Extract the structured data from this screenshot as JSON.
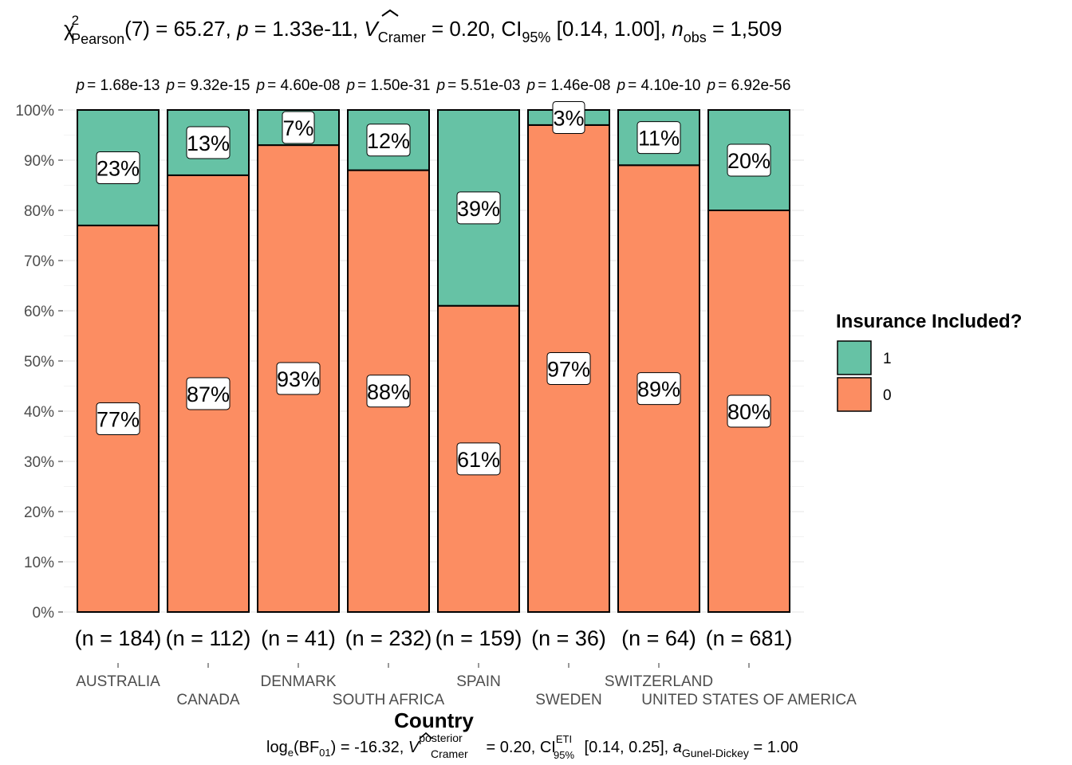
{
  "chart_data": {
    "type": "bar",
    "stacked": "percent",
    "title": {
      "chi": "χ",
      "chi_sup": "2",
      "chi_sub": "Pearson",
      "df": "(7) = 65.27, ",
      "p_sym": "p",
      "p_val": " = 1.33e-11, ",
      "v_sym": "V",
      "v_sub": "Cramer",
      "v_val": " = 0.20, CI",
      "ci_sub": "95%",
      "ci_val": " [0.14, 1.00], ",
      "n_sym": "n",
      "n_sub": "obs",
      "n_val": " = 1,509"
    },
    "subtitle": {
      "log": "log",
      "log_sub": "e",
      "bf": "(BF",
      "bf_sub": "01",
      "bf_val": ") = -16.32, ",
      "v_sym": "V",
      "v_sup": "posterior",
      "v_sub": "Cramer",
      "v_val": " = 0.20, CI",
      "ci_sup": "ETI",
      "ci_sub": "95%",
      "ci_val": " [0.14, 0.25], ",
      "a_sym": "a",
      "a_sub": "Gunel-Dickey",
      "a_val": " = 1.00"
    },
    "xlabel": "Country",
    "ylabel": "",
    "ylim": [
      0,
      100
    ],
    "y_ticks": [
      "0%",
      "10%",
      "20%",
      "30%",
      "40%",
      "50%",
      "60%",
      "70%",
      "80%",
      "90%",
      "100%"
    ],
    "grid": true,
    "categories": [
      "AUSTRALIA",
      "CANADA",
      "DENMARK",
      "SOUTH AFRICA",
      "SPAIN",
      "SWEDEN",
      "SWITZERLAND",
      "UNITED STATES OF AMERICA"
    ],
    "counts": [
      "(n = 184)",
      "(n = 112)",
      "(n = 41)",
      "(n = 232)",
      "(n = 159)",
      "(n = 36)",
      "(n = 64)",
      "(n = 681)"
    ],
    "p_labels": [
      "= 1.68e-13",
      "= 9.32e-15",
      "= 4.60e-08",
      "= 1.50e-31",
      "= 5.51e-03",
      "= 1.46e-08",
      "= 4.10e-10",
      "= 6.92e-56"
    ],
    "p_symbol": "p",
    "series": [
      {
        "name": "0",
        "color": "#FC8D62",
        "values": [
          77,
          87,
          93,
          88,
          61,
          97,
          89,
          80
        ],
        "labels": [
          "77%",
          "87%",
          "93%",
          "88%",
          "61%",
          "97%",
          "89%",
          "80%"
        ]
      },
      {
        "name": "1",
        "color": "#66C2A5",
        "values": [
          23,
          13,
          7,
          12,
          39,
          3,
          11,
          20
        ],
        "labels": [
          "23%",
          "13%",
          "7%",
          "12%",
          "39%",
          "3%",
          "11%",
          "20%"
        ]
      }
    ],
    "legend": {
      "title": "Insurance Included?",
      "placement": "right",
      "entries": [
        "1",
        "0"
      ]
    }
  }
}
